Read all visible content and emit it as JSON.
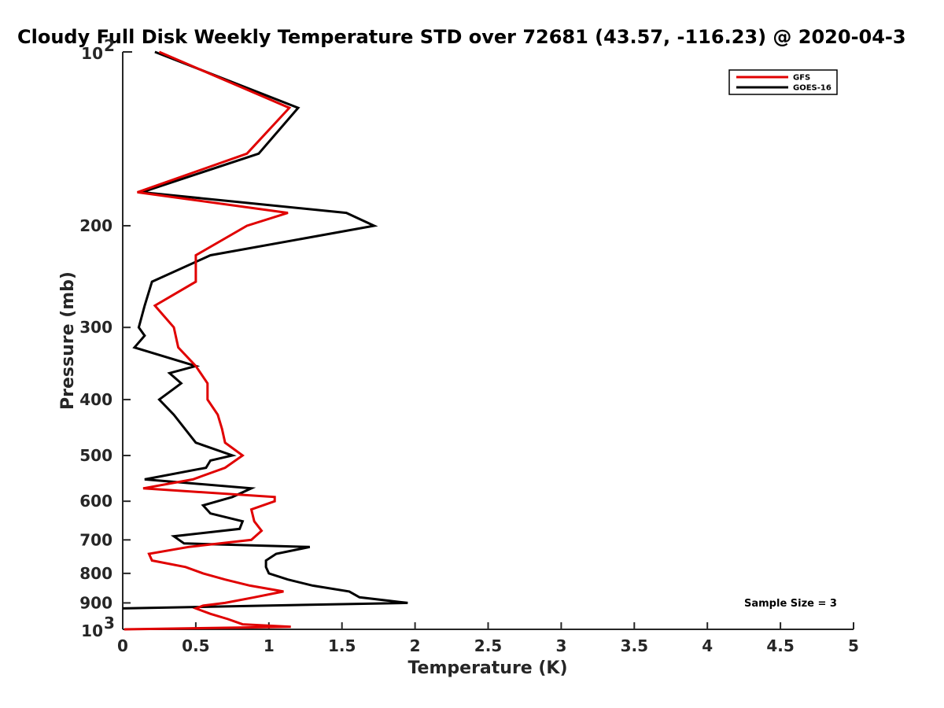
{
  "chart_data": {
    "type": "line",
    "title": "Cloudy Full Disk Weekly Temperature STD over 72681 (43.57, -116.23) @ 2020-04-3",
    "xlabel": "Temperature (K)",
    "ylabel": "Pressure (mb)",
    "xlim": [
      0,
      5
    ],
    "ylim": [
      100,
      1000
    ],
    "y_scale": "log",
    "y_reversed": true,
    "x_ticks": [
      0,
      0.5,
      1,
      1.5,
      2,
      2.5,
      3,
      3.5,
      4,
      4.5,
      5
    ],
    "x_tick_labels": [
      "0",
      "0.5",
      "1",
      "1.5",
      "2",
      "2.5",
      "3",
      "3.5",
      "4",
      "4.5",
      "5"
    ],
    "y_ticks": [
      200,
      300,
      400,
      500,
      600,
      700,
      800,
      900
    ],
    "y_tick_labels": [
      "200",
      "300",
      "400",
      "500",
      "600",
      "700",
      "800",
      "900"
    ],
    "y_decade_ticks": [
      {
        "value": 100,
        "base": "10",
        "exp": "2"
      },
      {
        "value": 1000,
        "base": "10",
        "exp": "3"
      }
    ],
    "grid": false,
    "legend_position": "top-right",
    "annotation": "Sample Size = 3",
    "series": [
      {
        "name": "GFS",
        "color": "#e00000",
        "points": [
          [
            0.25,
            100
          ],
          [
            1.14,
            125
          ],
          [
            0.85,
            150
          ],
          [
            0.1,
            175
          ],
          [
            1.13,
            190
          ],
          [
            0.85,
            200
          ],
          [
            0.5,
            225
          ],
          [
            0.5,
            250
          ],
          [
            0.22,
            275
          ],
          [
            0.35,
            300
          ],
          [
            0.38,
            325
          ],
          [
            0.5,
            350
          ],
          [
            0.58,
            375
          ],
          [
            0.58,
            400
          ],
          [
            0.65,
            425
          ],
          [
            0.68,
            450
          ],
          [
            0.7,
            475
          ],
          [
            0.82,
            500
          ],
          [
            0.7,
            525
          ],
          [
            0.48,
            550
          ],
          [
            0.14,
            570
          ],
          [
            1.04,
            590
          ],
          [
            1.04,
            600
          ],
          [
            0.88,
            620
          ],
          [
            0.9,
            650
          ],
          [
            0.95,
            675
          ],
          [
            0.88,
            700
          ],
          [
            0.45,
            720
          ],
          [
            0.18,
            740
          ],
          [
            0.2,
            760
          ],
          [
            0.43,
            780
          ],
          [
            0.55,
            800
          ],
          [
            0.7,
            820
          ],
          [
            0.87,
            840
          ],
          [
            1.1,
            860
          ],
          [
            0.9,
            880
          ],
          [
            0.7,
            900
          ],
          [
            0.55,
            910
          ],
          [
            0.5,
            920
          ],
          [
            0.6,
            940
          ],
          [
            0.72,
            960
          ],
          [
            0.82,
            980
          ],
          [
            1.15,
            990
          ],
          [
            0.01,
            1000
          ]
        ]
      },
      {
        "name": "GOES-16",
        "color": "#000000",
        "points": [
          [
            0.22,
            100
          ],
          [
            1.2,
            125
          ],
          [
            0.93,
            150
          ],
          [
            0.13,
            175
          ],
          [
            1.53,
            190
          ],
          [
            1.72,
            200
          ],
          [
            0.6,
            225
          ],
          [
            0.2,
            250
          ],
          [
            0.15,
            275
          ],
          [
            0.11,
            300
          ],
          [
            0.15,
            310
          ],
          [
            0.08,
            325
          ],
          [
            0.5,
            350
          ],
          [
            0.32,
            360
          ],
          [
            0.4,
            375
          ],
          [
            0.25,
            400
          ],
          [
            0.35,
            425
          ],
          [
            0.5,
            475
          ],
          [
            0.75,
            500
          ],
          [
            0.6,
            510
          ],
          [
            0.57,
            525
          ],
          [
            0.15,
            550
          ],
          [
            0.88,
            570
          ],
          [
            0.75,
            590
          ],
          [
            0.55,
            610
          ],
          [
            0.6,
            630
          ],
          [
            0.82,
            650
          ],
          [
            0.8,
            670
          ],
          [
            0.35,
            690
          ],
          [
            0.42,
            710
          ],
          [
            1.28,
            720
          ],
          [
            1.05,
            740
          ],
          [
            0.98,
            760
          ],
          [
            0.98,
            780
          ],
          [
            1.0,
            800
          ],
          [
            1.13,
            820
          ],
          [
            1.3,
            840
          ],
          [
            1.55,
            860
          ],
          [
            1.62,
            880
          ],
          [
            1.95,
            900
          ],
          [
            0.0,
            920
          ]
        ]
      }
    ]
  }
}
